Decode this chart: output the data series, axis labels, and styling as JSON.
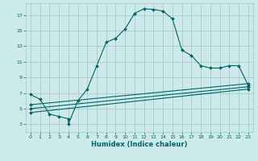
{
  "title": "",
  "xlabel": "Humidex (Indice chaleur)",
  "ylabel": "",
  "bg_color": "#cceaea",
  "grid_color": "#aacccc",
  "line_color": "#006666",
  "xlim": [
    -0.5,
    23.5
  ],
  "ylim": [
    2,
    18.5
  ],
  "xticks": [
    0,
    1,
    2,
    3,
    4,
    5,
    6,
    7,
    8,
    9,
    10,
    11,
    12,
    13,
    14,
    15,
    16,
    17,
    18,
    19,
    20,
    21,
    22,
    23
  ],
  "yticks": [
    3,
    5,
    7,
    9,
    11,
    13,
    15,
    17
  ],
  "line1_x": [
    0,
    1,
    2,
    3,
    4,
    4,
    5,
    6,
    7,
    8,
    9,
    10,
    11,
    12,
    13,
    14,
    15,
    16,
    17,
    18,
    19,
    20,
    21,
    22,
    23
  ],
  "line1_y": [
    6.8,
    6.2,
    4.3,
    4.0,
    3.7,
    3.0,
    6.0,
    7.5,
    10.5,
    13.5,
    14.0,
    15.2,
    17.2,
    17.8,
    17.7,
    17.5,
    16.5,
    12.5,
    11.8,
    10.5,
    10.2,
    10.2,
    10.5,
    10.5,
    8.0
  ],
  "line2_x": [
    0,
    23
  ],
  "line2_y": [
    5.5,
    8.2
  ],
  "line3_x": [
    0,
    23
  ],
  "line3_y": [
    5.0,
    7.8
  ],
  "line4_x": [
    0,
    23
  ],
  "line4_y": [
    4.5,
    7.5
  ]
}
